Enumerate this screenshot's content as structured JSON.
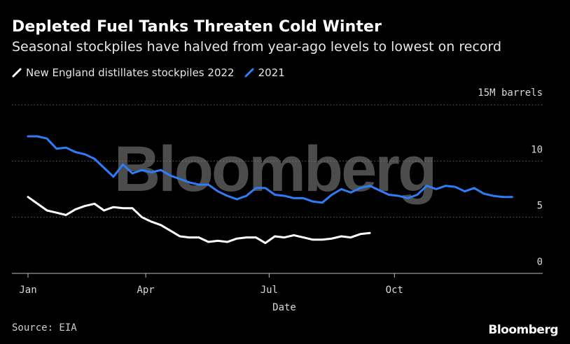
{
  "header": {
    "title": "Depleted Fuel Tanks Threaten Cold Winter",
    "subtitle": "Seasonal stockpiles have halved from year-ago levels to lowest on record"
  },
  "legend": {
    "item_2022": "New England distillates stockpiles 2022",
    "item_2021": "2021"
  },
  "footer": {
    "source": "Source: EIA",
    "brand": "Bloomberg"
  },
  "watermark": "Bloomberg",
  "colors": {
    "series_2022": "#ffffff",
    "series_2021": "#2e7df6",
    "grid": "#6a6a6a",
    "background": "#000000"
  },
  "chart_data": {
    "type": "line",
    "title": "Depleted Fuel Tanks Threaten Cold Winter",
    "subtitle": "Seasonal stockpiles have halved from year-ago levels to lowest on record",
    "xlabel": "Date",
    "ylabel": "",
    "unit_label": "15M barrels",
    "x_axis": "week of year (1-52)",
    "xlim": [
      1,
      53
    ],
    "ylim": [
      0,
      15
    ],
    "y_ticks": [
      0,
      5,
      10
    ],
    "x_ticks": [
      {
        "label": "Jan",
        "week": 1
      },
      {
        "label": "Apr",
        "week": 13.4
      },
      {
        "label": "Jul",
        "week": 26.4
      },
      {
        "label": "Oct",
        "week": 39.6
      }
    ],
    "grid": true,
    "legend_position": "top-left",
    "series": [
      {
        "name": "New England distillates stockpiles 2022",
        "color": "#ffffff",
        "x": [
          1,
          2,
          3,
          4,
          5,
          6,
          7,
          8,
          9,
          10,
          11,
          12,
          13,
          14,
          15,
          16,
          17,
          18,
          19,
          20,
          21,
          22,
          23,
          24,
          25,
          26,
          27,
          28,
          29,
          30,
          31,
          32,
          33,
          34,
          35,
          36,
          37
        ],
        "values": [
          6.8,
          6.2,
          5.6,
          5.4,
          5.2,
          5.7,
          6.0,
          6.2,
          5.6,
          5.9,
          5.8,
          5.8,
          5.0,
          4.6,
          4.3,
          3.8,
          3.3,
          3.2,
          3.2,
          2.8,
          2.9,
          2.8,
          3.1,
          3.2,
          3.2,
          2.7,
          3.3,
          3.2,
          3.4,
          3.2,
          3.0,
          3.0,
          3.1,
          3.3,
          3.2,
          3.5,
          3.6
        ]
      },
      {
        "name": "2021",
        "color": "#2e7df6",
        "x": [
          1,
          2,
          3,
          4,
          5,
          6,
          7,
          8,
          9,
          10,
          11,
          12,
          13,
          14,
          15,
          16,
          17,
          18,
          19,
          20,
          21,
          22,
          23,
          24,
          25,
          26,
          27,
          28,
          29,
          30,
          31,
          32,
          33,
          34,
          35,
          36,
          37,
          38,
          39,
          40,
          41,
          42,
          43,
          44,
          45,
          46,
          47,
          48,
          49,
          50,
          51,
          52
        ],
        "values": [
          12.2,
          12.2,
          12.0,
          11.1,
          11.2,
          10.8,
          10.6,
          10.2,
          9.4,
          8.6,
          9.7,
          8.9,
          9.2,
          9.0,
          9.2,
          8.7,
          8.4,
          8.1,
          7.9,
          7.9,
          7.3,
          6.9,
          6.6,
          6.9,
          7.6,
          7.6,
          7.0,
          6.9,
          6.7,
          6.7,
          6.4,
          6.3,
          7.0,
          7.5,
          7.2,
          7.6,
          7.8,
          7.4,
          7.0,
          6.9,
          6.7,
          7.0,
          7.8,
          7.5,
          7.8,
          7.7,
          7.3,
          7.6,
          7.1,
          6.9,
          6.8,
          6.8
        ]
      }
    ]
  }
}
